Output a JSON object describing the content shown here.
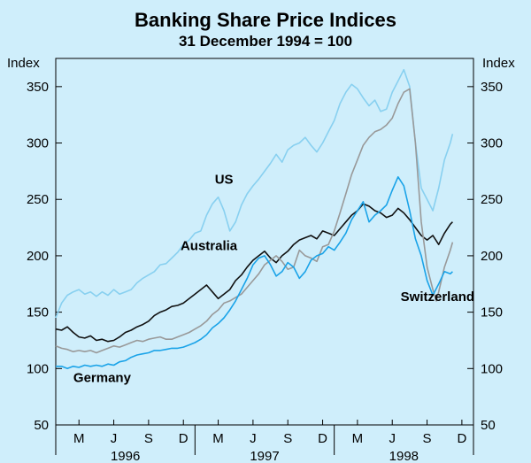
{
  "chart_data": {
    "type": "line",
    "title": "Banking Share Price Indices",
    "subtitle": "31 December 1994 = 100",
    "ylabel_left": "Index",
    "ylabel_right": "Index",
    "ylim": [
      50,
      375
    ],
    "yticks": [
      50,
      100,
      150,
      200,
      250,
      300,
      350
    ],
    "xlim": [
      0,
      36
    ],
    "month_ticks": [
      {
        "label": "M",
        "pos": 2
      },
      {
        "label": "J",
        "pos": 5
      },
      {
        "label": "S",
        "pos": 8
      },
      {
        "label": "D",
        "pos": 11
      },
      {
        "label": "M",
        "pos": 14
      },
      {
        "label": "J",
        "pos": 17
      },
      {
        "label": "S",
        "pos": 20
      },
      {
        "label": "D",
        "pos": 23
      },
      {
        "label": "M",
        "pos": 26
      },
      {
        "label": "J",
        "pos": 29
      },
      {
        "label": "S",
        "pos": 32
      },
      {
        "label": "D",
        "pos": 35
      }
    ],
    "years": [
      {
        "label": "1996",
        "center": 6
      },
      {
        "label": "1997",
        "center": 18
      },
      {
        "label": "1998",
        "center": 30
      }
    ],
    "year_dividers": [
      0,
      12,
      24,
      36
    ],
    "series": [
      {
        "name": "US",
        "color": "#88d0f0",
        "label_pos": {
          "x": 14.5,
          "y": 264
        },
        "points": [
          [
            0,
            145
          ],
          [
            0.5,
            158
          ],
          [
            1,
            165
          ],
          [
            1.5,
            168
          ],
          [
            2,
            170
          ],
          [
            2.5,
            166
          ],
          [
            3,
            168
          ],
          [
            3.5,
            164
          ],
          [
            4,
            168
          ],
          [
            4.5,
            165
          ],
          [
            5,
            170
          ],
          [
            5.5,
            166
          ],
          [
            6,
            168
          ],
          [
            6.5,
            170
          ],
          [
            7,
            176
          ],
          [
            7.5,
            180
          ],
          [
            8,
            183
          ],
          [
            8.5,
            186
          ],
          [
            9,
            192
          ],
          [
            9.5,
            193
          ],
          [
            10,
            198
          ],
          [
            10.5,
            203
          ],
          [
            11,
            210
          ],
          [
            11.5,
            214
          ],
          [
            12,
            220
          ],
          [
            12.5,
            222
          ],
          [
            13,
            236
          ],
          [
            13.5,
            246
          ],
          [
            14,
            252
          ],
          [
            14.5,
            240
          ],
          [
            15,
            222
          ],
          [
            15.5,
            230
          ],
          [
            16,
            245
          ],
          [
            16.5,
            255
          ],
          [
            17,
            262
          ],
          [
            17.5,
            268
          ],
          [
            18,
            275
          ],
          [
            18.5,
            282
          ],
          [
            19,
            290
          ],
          [
            19.5,
            283
          ],
          [
            20,
            294
          ],
          [
            20.5,
            298
          ],
          [
            21,
            300
          ],
          [
            21.5,
            305
          ],
          [
            22,
            298
          ],
          [
            22.5,
            292
          ],
          [
            23,
            300
          ],
          [
            23.5,
            310
          ],
          [
            24,
            320
          ],
          [
            24.5,
            335
          ],
          [
            25,
            345
          ],
          [
            25.5,
            352
          ],
          [
            26,
            348
          ],
          [
            26.5,
            340
          ],
          [
            27,
            333
          ],
          [
            27.5,
            338
          ],
          [
            28,
            328
          ],
          [
            28.5,
            330
          ],
          [
            29,
            345
          ],
          [
            29.5,
            355
          ],
          [
            30,
            365
          ],
          [
            30.5,
            350
          ],
          [
            31,
            300
          ],
          [
            31.5,
            260
          ],
          [
            32,
            250
          ],
          [
            32.5,
            240
          ],
          [
            33,
            260
          ],
          [
            33.5,
            285
          ],
          [
            34,
            300
          ],
          [
            34.2,
            308
          ]
        ]
      },
      {
        "name": "Australia",
        "color": "#111111",
        "label_pos": {
          "x": 13.2,
          "y": 205
        },
        "points": [
          [
            0,
            135
          ],
          [
            0.5,
            134
          ],
          [
            1,
            137
          ],
          [
            1.5,
            132
          ],
          [
            2,
            128
          ],
          [
            2.5,
            127
          ],
          [
            3,
            129
          ],
          [
            3.5,
            125
          ],
          [
            4,
            126
          ],
          [
            4.5,
            124
          ],
          [
            5,
            125
          ],
          [
            5.5,
            128
          ],
          [
            6,
            132
          ],
          [
            6.5,
            134
          ],
          [
            7,
            137
          ],
          [
            7.5,
            139
          ],
          [
            8,
            142
          ],
          [
            8.5,
            147
          ],
          [
            9,
            150
          ],
          [
            9.5,
            152
          ],
          [
            10,
            155
          ],
          [
            10.5,
            156
          ],
          [
            11,
            158
          ],
          [
            11.5,
            162
          ],
          [
            12,
            166
          ],
          [
            12.5,
            170
          ],
          [
            13,
            174
          ],
          [
            13.5,
            168
          ],
          [
            14,
            162
          ],
          [
            14.5,
            166
          ],
          [
            15,
            170
          ],
          [
            15.5,
            178
          ],
          [
            16,
            183
          ],
          [
            16.5,
            190
          ],
          [
            17,
            196
          ],
          [
            17.5,
            200
          ],
          [
            18,
            204
          ],
          [
            18.5,
            198
          ],
          [
            19,
            194
          ],
          [
            19.5,
            200
          ],
          [
            20,
            204
          ],
          [
            20.5,
            210
          ],
          [
            21,
            214
          ],
          [
            21.5,
            216
          ],
          [
            22,
            218
          ],
          [
            22.5,
            215
          ],
          [
            23,
            222
          ],
          [
            23.5,
            220
          ],
          [
            24,
            218
          ],
          [
            24.5,
            224
          ],
          [
            25,
            230
          ],
          [
            25.5,
            236
          ],
          [
            26,
            240
          ],
          [
            26.5,
            246
          ],
          [
            27,
            244
          ],
          [
            27.5,
            240
          ],
          [
            28,
            238
          ],
          [
            28.5,
            234
          ],
          [
            29,
            236
          ],
          [
            29.5,
            242
          ],
          [
            30,
            238
          ],
          [
            30.5,
            232
          ],
          [
            31,
            225
          ],
          [
            31.5,
            218
          ],
          [
            32,
            214
          ],
          [
            32.5,
            218
          ],
          [
            33,
            210
          ],
          [
            33.5,
            220
          ],
          [
            34,
            228
          ],
          [
            34.2,
            230
          ]
        ]
      },
      {
        "name": "Switzerland",
        "color": "#999999",
        "label_pos": {
          "x": 32.9,
          "y": 160
        },
        "points": [
          [
            0,
            120
          ],
          [
            0.5,
            118
          ],
          [
            1,
            117
          ],
          [
            1.5,
            115
          ],
          [
            2,
            116
          ],
          [
            2.5,
            115
          ],
          [
            3,
            116
          ],
          [
            3.5,
            114
          ],
          [
            4,
            116
          ],
          [
            4.5,
            118
          ],
          [
            5,
            120
          ],
          [
            5.5,
            119
          ],
          [
            6,
            121
          ],
          [
            6.5,
            123
          ],
          [
            7,
            125
          ],
          [
            7.5,
            124
          ],
          [
            8,
            126
          ],
          [
            8.5,
            127
          ],
          [
            9,
            128
          ],
          [
            9.5,
            126
          ],
          [
            10,
            126
          ],
          [
            10.5,
            128
          ],
          [
            11,
            130
          ],
          [
            11.5,
            132
          ],
          [
            12,
            135
          ],
          [
            12.5,
            138
          ],
          [
            13,
            142
          ],
          [
            13.5,
            148
          ],
          [
            14,
            152
          ],
          [
            14.5,
            158
          ],
          [
            15,
            160
          ],
          [
            15.5,
            163
          ],
          [
            16,
            166
          ],
          [
            16.5,
            172
          ],
          [
            17,
            178
          ],
          [
            17.5,
            184
          ],
          [
            18,
            192
          ],
          [
            18.5,
            196
          ],
          [
            19,
            200
          ],
          [
            19.5,
            195
          ],
          [
            20,
            188
          ],
          [
            20.5,
            190
          ],
          [
            21,
            205
          ],
          [
            21.5,
            200
          ],
          [
            22,
            198
          ],
          [
            22.5,
            195
          ],
          [
            23,
            208
          ],
          [
            23.5,
            210
          ],
          [
            24,
            222
          ],
          [
            24.5,
            238
          ],
          [
            25,
            255
          ],
          [
            25.5,
            272
          ],
          [
            26,
            285
          ],
          [
            26.5,
            298
          ],
          [
            27,
            305
          ],
          [
            27.5,
            310
          ],
          [
            28,
            312
          ],
          [
            28.5,
            316
          ],
          [
            29,
            322
          ],
          [
            29.5,
            335
          ],
          [
            30,
            345
          ],
          [
            30.5,
            348
          ],
          [
            31,
            300
          ],
          [
            31.5,
            230
          ],
          [
            32,
            190
          ],
          [
            32.5,
            170
          ],
          [
            32.8,
            160
          ],
          [
            33,
            168
          ],
          [
            33.5,
            190
          ],
          [
            34,
            205
          ],
          [
            34.2,
            212
          ]
        ]
      },
      {
        "name": "Germany",
        "color": "#1aa3e8",
        "label_pos": {
          "x": 4.0,
          "y": 88
        },
        "points": [
          [
            0,
            102
          ],
          [
            0.5,
            102
          ],
          [
            1,
            100
          ],
          [
            1.5,
            102
          ],
          [
            2,
            101
          ],
          [
            2.5,
            103
          ],
          [
            3,
            102
          ],
          [
            3.5,
            103
          ],
          [
            4,
            102
          ],
          [
            4.5,
            104
          ],
          [
            5,
            103
          ],
          [
            5.5,
            106
          ],
          [
            6,
            107
          ],
          [
            6.5,
            110
          ],
          [
            7,
            112
          ],
          [
            7.5,
            113
          ],
          [
            8,
            114
          ],
          [
            8.5,
            116
          ],
          [
            9,
            116
          ],
          [
            9.5,
            117
          ],
          [
            10,
            118
          ],
          [
            10.5,
            118
          ],
          [
            11,
            119
          ],
          [
            11.5,
            121
          ],
          [
            12,
            123
          ],
          [
            12.5,
            126
          ],
          [
            13,
            130
          ],
          [
            13.5,
            136
          ],
          [
            14,
            140
          ],
          [
            14.5,
            145
          ],
          [
            15,
            152
          ],
          [
            15.5,
            160
          ],
          [
            16,
            170
          ],
          [
            16.5,
            180
          ],
          [
            17,
            192
          ],
          [
            17.5,
            198
          ],
          [
            18,
            200
          ],
          [
            18.5,
            192
          ],
          [
            19,
            182
          ],
          [
            19.5,
            186
          ],
          [
            20,
            194
          ],
          [
            20.5,
            190
          ],
          [
            21,
            180
          ],
          [
            21.5,
            186
          ],
          [
            22,
            196
          ],
          [
            22.5,
            200
          ],
          [
            23,
            202
          ],
          [
            23.5,
            208
          ],
          [
            24,
            205
          ],
          [
            24.5,
            212
          ],
          [
            25,
            220
          ],
          [
            25.5,
            232
          ],
          [
            26,
            240
          ],
          [
            26.5,
            248
          ],
          [
            27,
            230
          ],
          [
            27.5,
            236
          ],
          [
            28,
            240
          ],
          [
            28.5,
            245
          ],
          [
            29,
            258
          ],
          [
            29.5,
            270
          ],
          [
            30,
            262
          ],
          [
            30.5,
            240
          ],
          [
            31,
            215
          ],
          [
            31.5,
            200
          ],
          [
            32,
            178
          ],
          [
            32.5,
            165
          ],
          [
            33,
            175
          ],
          [
            33.5,
            186
          ],
          [
            34,
            184
          ],
          [
            34.2,
            186
          ]
        ]
      }
    ]
  }
}
